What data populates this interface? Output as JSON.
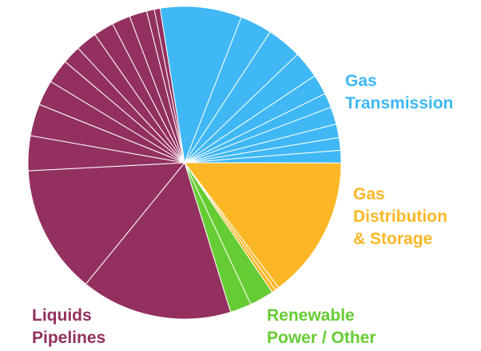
{
  "chart_data": {
    "type": "pie",
    "start_angle": -9,
    "series": [
      {
        "name": "Gas\nTransmission",
        "color": "#3fb8f5",
        "values": [
          8.4,
          3.3,
          3.6,
          2.8,
          2.1,
          1.5,
          1.8,
          1.4,
          1.3,
          1.3
        ]
      },
      {
        "name": "Gas\nDistribution\n& Storage",
        "color": "#fbb725",
        "values": [
          14.7,
          0.4,
          0.4
        ]
      },
      {
        "name": "Renewable\nPower / Other",
        "color": "#66cc33",
        "values": [
          2.5,
          2.2
        ]
      },
      {
        "name": "Liquids\nPipelines",
        "color": "#93305f",
        "values": [
          15.6,
          13.3,
          3.6,
          3.3,
          2.6,
          2.5,
          1.9,
          2.2,
          2.1,
          1.9,
          1.8,
          0.8,
          0.6
        ]
      }
    ]
  }
}
